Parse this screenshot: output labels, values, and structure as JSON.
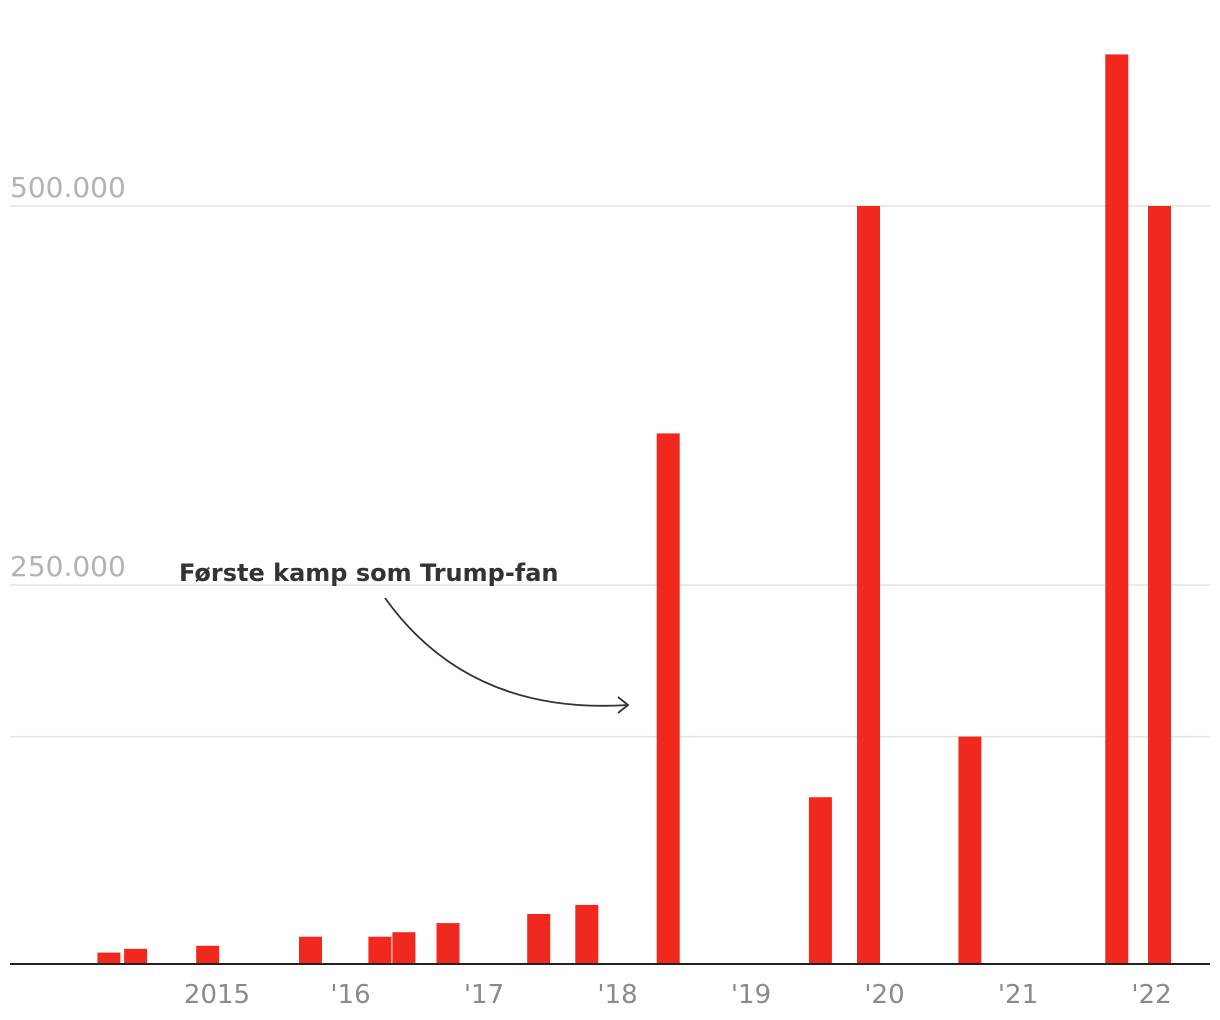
{
  "chart_data": {
    "type": "bar",
    "title": "",
    "xlabel": "",
    "ylabel": "",
    "ylim": [
      0,
      600000
    ],
    "yticks": [
      {
        "value": 500000,
        "label": "500.000",
        "show_label": true
      },
      {
        "value": 250000,
        "label": "250.000",
        "show_label": true
      },
      {
        "value": 150000,
        "label": "",
        "show_label": false
      }
    ],
    "xticks": [
      {
        "label": "2015",
        "date": "2015.45"
      },
      {
        "label": "'16",
        "date": "2016.45"
      },
      {
        "label": "'17",
        "date": "2017.45"
      },
      {
        "label": "'18",
        "date": "2018.45"
      },
      {
        "label": "'19",
        "date": "2019.45"
      },
      {
        "label": "'20",
        "date": "2020.45"
      },
      {
        "label": "'21",
        "date": "2021.45"
      },
      {
        "label": "'22",
        "date": "2022.45"
      }
    ],
    "bar_color": "#f0281e",
    "series": [
      {
        "values": [
          {
            "date": "2014.64",
            "value": 7500
          },
          {
            "date": "2014.84",
            "value": 10000
          },
          {
            "date": "2015.38",
            "value": 12000
          },
          {
            "date": "2016.15",
            "value": 18000
          },
          {
            "date": "2016.67",
            "value": 18000
          },
          {
            "date": "2016.85",
            "value": 21000
          },
          {
            "date": "2017.18",
            "value": 27000
          },
          {
            "date": "2017.86",
            "value": 33000
          },
          {
            "date": "2018.22",
            "value": 39000
          },
          {
            "date": "2018.83",
            "value": 350000
          },
          {
            "date": "2019.97",
            "value": 110000
          },
          {
            "date": "2020.33",
            "value": 500000
          },
          {
            "date": "2021.09",
            "value": 150000
          },
          {
            "date": "2022.19",
            "value": 600000
          },
          {
            "date": "2022.51",
            "value": 500000
          }
        ]
      }
    ],
    "annotations": [
      {
        "text": "Første kamp som Trump-fan",
        "target_date": "2018.83"
      }
    ],
    "grid": true,
    "legend": "none"
  }
}
